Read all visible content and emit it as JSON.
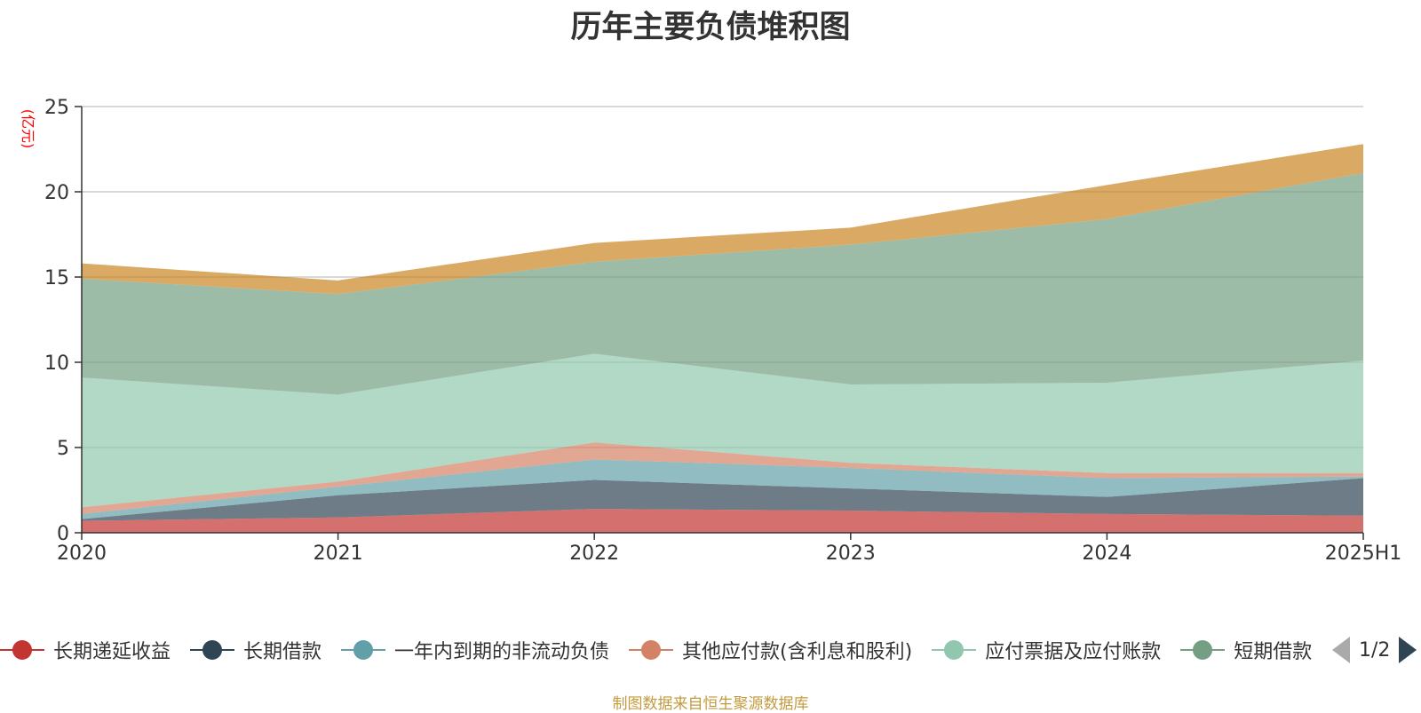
{
  "chart_data": {
    "type": "area",
    "stacked": true,
    "title": "历年主要负债堆积图",
    "ylabel": "(亿元)",
    "categories": [
      "2020",
      "2021",
      "2022",
      "2023",
      "2024",
      "2025H1"
    ],
    "ylim": [
      0,
      25
    ],
    "yticks": [
      0,
      5,
      10,
      15,
      20,
      25
    ],
    "grid": true,
    "legend_position": "bottom",
    "series": [
      {
        "name": "长期递延收益",
        "color": "#c23531",
        "values": [
          0.7,
          0.9,
          1.4,
          1.3,
          1.1,
          1.0
        ]
      },
      {
        "name": "长期借款",
        "color": "#2f4554",
        "values": [
          0.1,
          1.3,
          1.7,
          1.3,
          1.0,
          2.2
        ]
      },
      {
        "name": "一年内到期的非流动负债",
        "color": "#61a0a8",
        "values": [
          0.3,
          0.5,
          1.2,
          1.2,
          1.1,
          0.1
        ]
      },
      {
        "name": "其他应付款(含利息和股利)",
        "color": "#d48265",
        "values": [
          0.4,
          0.3,
          1.0,
          0.3,
          0.3,
          0.2
        ]
      },
      {
        "name": "应付票据及应付账款",
        "color": "#91c7ae",
        "values": [
          7.6,
          5.1,
          5.2,
          4.6,
          5.3,
          6.6
        ]
      },
      {
        "name": "短期借款",
        "color": "#749f83",
        "values": [
          5.8,
          5.9,
          5.4,
          8.2,
          9.6,
          11.0
        ]
      },
      {
        "name": "",
        "color": "#ca8622",
        "values": [
          0.9,
          0.8,
          1.1,
          1.0,
          2.0,
          1.7
        ]
      }
    ]
  },
  "legend": {
    "page_indicator": "1/2",
    "prev_icon": "triangle-left-icon",
    "next_icon": "triangle-right-icon"
  },
  "footer": {
    "source_note": "制图数据来自恒生聚源数据库"
  }
}
